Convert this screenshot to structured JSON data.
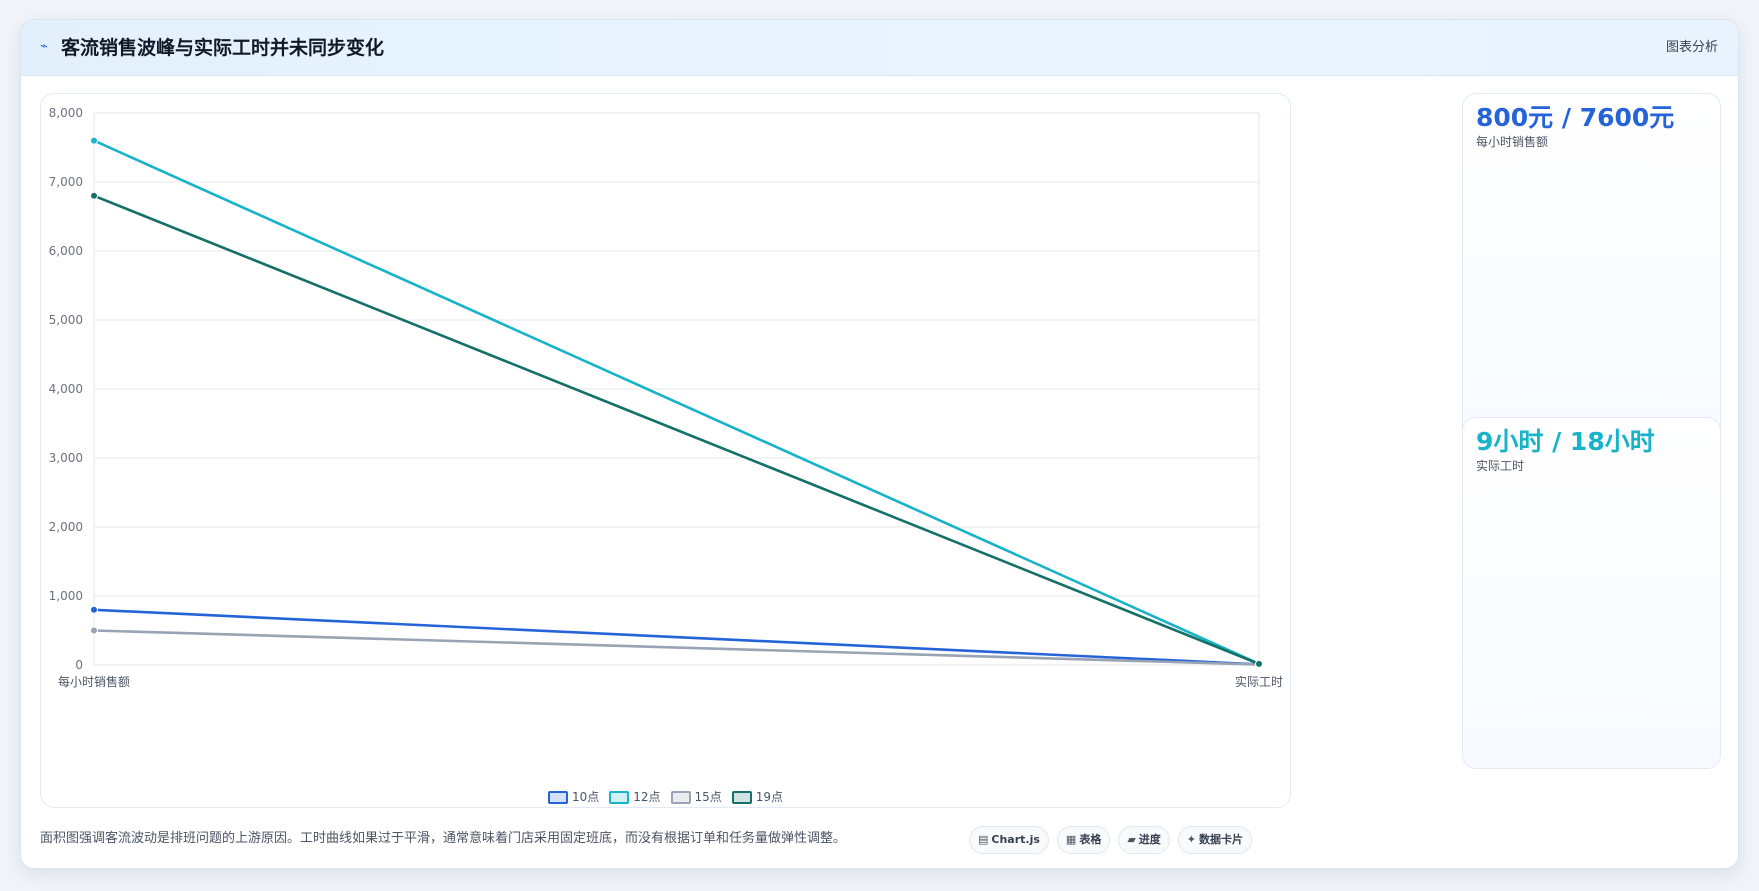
{
  "header": {
    "icon": "wave-icon",
    "title": "客流销售波峰与实际工时并未同步变化",
    "link": "图表分析"
  },
  "chart_data": {
    "type": "line",
    "categories": [
      "每小时销售额",
      "实际工时"
    ],
    "series": [
      {
        "name": "10点",
        "values": [
          800,
          9
        ],
        "color": "#2563d8"
      },
      {
        "name": "12点",
        "values": [
          7600,
          18
        ],
        "color": "#17b3c9"
      },
      {
        "name": "15点",
        "values": [
          500,
          7
        ],
        "color": "#98a3b3"
      },
      {
        "name": "19点",
        "values": [
          6800,
          16
        ],
        "color": "#157067"
      }
    ],
    "ylim": [
      0,
      8000
    ],
    "yticks": [
      0,
      1000,
      2000,
      3000,
      4000,
      5000,
      6000,
      7000,
      8000
    ],
    "ytick_labels": [
      "0",
      "1,000",
      "2,000",
      "3,000",
      "4,000",
      "5,000",
      "6,000",
      "7,000",
      "8,000"
    ],
    "grid": true,
    "legend": "bottom-center",
    "title": "",
    "xlabel": "",
    "ylabel": ""
  },
  "stats": [
    {
      "value": "800元 / 7600元",
      "label": "每小时销售额",
      "color": "#2563d8"
    },
    {
      "value": "9小时 / 18小时",
      "label": "实际工时",
      "color": "#17b3c9"
    }
  ],
  "footer": {
    "note": "面积图强调客流波动是排班问题的上游原因。工时曲线如果过于平滑，通常意味着门店采用固定班底，而没有根据订单和任务量做弹性调整。",
    "chips": [
      {
        "icon": "chart-icon",
        "glyph": "▤",
        "label": "Chart.js"
      },
      {
        "icon": "table-icon",
        "glyph": "▦",
        "label": "表格"
      },
      {
        "icon": "progress-icon",
        "glyph": "▰",
        "label": "进度"
      },
      {
        "icon": "card-icon",
        "glyph": "✦",
        "label": "数据卡片"
      }
    ]
  }
}
